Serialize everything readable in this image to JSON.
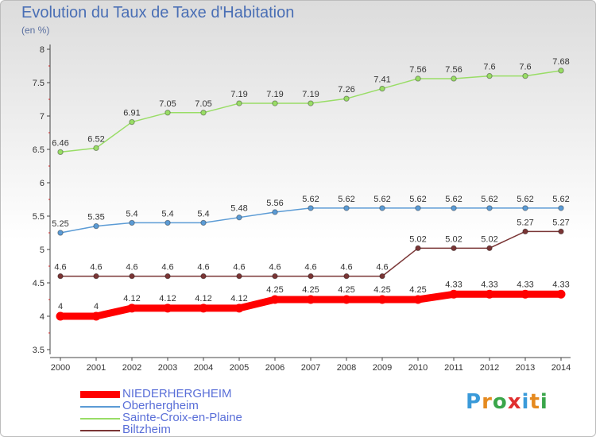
{
  "title": "Evolution du Taux de Taxe d'Habitation",
  "subtitle": "(en %)",
  "logo": "Proxiti",
  "chart_data": {
    "type": "line",
    "title": "Evolution du Taux de Taxe d'Habitation",
    "ylabel": "(en %)",
    "xlabel": "",
    "ylim": [
      3.5,
      8
    ],
    "yticks": [
      3.5,
      4,
      4.5,
      5,
      5.5,
      6,
      6.5,
      7,
      7.5,
      8
    ],
    "grid": false,
    "legend_position": "bottom",
    "x": [
      2000,
      2001,
      2002,
      2003,
      2004,
      2005,
      2006,
      2007,
      2008,
      2009,
      2010,
      2011,
      2012,
      2013,
      2014
    ],
    "series": [
      {
        "name": "NIEDERHERGHEIM",
        "color": "#ff0000",
        "values": [
          4,
          4,
          4.12,
          4.12,
          4.12,
          4.12,
          4.25,
          4.25,
          4.25,
          4.25,
          4.25,
          4.33,
          4.33,
          4.33,
          4.33
        ],
        "labels": [
          "4",
          "4",
          "4.12",
          "4.12",
          "4.12",
          "4.12",
          "4.25",
          "4.25",
          "4.25",
          "4.25",
          "4.25",
          "4.33",
          "4.33",
          "4.33",
          "4.33"
        ]
      },
      {
        "name": "Oberhergheim",
        "color": "#5b9bd5",
        "values": [
          5.25,
          5.35,
          5.4,
          5.4,
          5.4,
          5.48,
          5.56,
          5.62,
          5.62,
          5.62,
          5.62,
          5.62,
          5.62,
          5.62,
          5.62
        ],
        "labels": [
          "5.25",
          "5.35",
          "5.4",
          "5.4",
          "5.4",
          "5.48",
          "5.56",
          "5.62",
          "5.62",
          "5.62",
          "5.62",
          "5.62",
          "5.62",
          "5.62",
          "5.62"
        ]
      },
      {
        "name": "Sainte-Croix-en-Plaine",
        "color": "#99dd66",
        "values": [
          6.46,
          6.52,
          6.91,
          7.05,
          7.05,
          7.19,
          7.19,
          7.19,
          7.26,
          7.41,
          7.56,
          7.56,
          7.6,
          7.6,
          7.68
        ],
        "labels": [
          "6.46",
          "6.52",
          "6.91",
          "7.05",
          "7.05",
          "7.19",
          "7.19",
          "7.19",
          "7.26",
          "7.41",
          "7.56",
          "7.56",
          "7.6",
          "7.6",
          "7.68"
        ]
      },
      {
        "name": "Biltzheim",
        "color": "#7a3535",
        "values": [
          4.6,
          4.6,
          4.6,
          4.6,
          4.6,
          4.6,
          4.6,
          4.6,
          4.6,
          4.6,
          5.02,
          5.02,
          5.02,
          5.27,
          5.27
        ],
        "labels": [
          "4.6",
          "4.6",
          "4.6",
          "4.6",
          "4.6",
          "4.6",
          "4.6",
          "4.6",
          "4.6",
          "4.6",
          "5.02",
          "5.02",
          "5.02",
          "5.27",
          "5.27"
        ]
      }
    ]
  }
}
